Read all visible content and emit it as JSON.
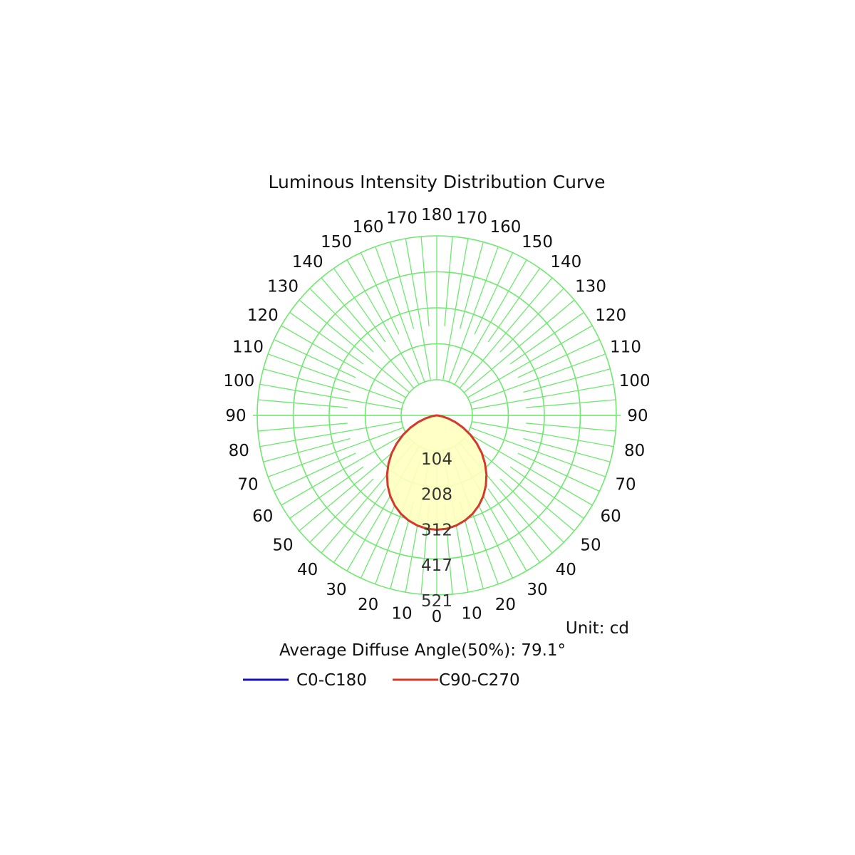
{
  "chart_data": {
    "type": "polar",
    "title": "Luminous Intensity Distribution Curve",
    "unit_label": "Unit: cd",
    "average_angle_label": "Average Diffuse Angle(50%): 79.1°",
    "radial_ticks": [
      "104",
      "208",
      "312",
      "417",
      "521"
    ],
    "radial_max": 521,
    "angle_labels_right": [
      "0",
      "10",
      "20",
      "30",
      "40",
      "50",
      "60",
      "70",
      "80",
      "90",
      "100",
      "110",
      "120",
      "130",
      "140",
      "150",
      "160",
      "170",
      "180"
    ],
    "angle_labels_left": [
      "10",
      "20",
      "30",
      "40",
      "50",
      "60",
      "70",
      "80",
      "90",
      "100",
      "110",
      "120",
      "130",
      "140",
      "150",
      "160",
      "170"
    ],
    "angles": [
      0,
      5,
      10,
      15,
      20,
      25,
      30,
      35,
      40,
      45,
      50,
      55,
      60,
      65,
      70,
      75,
      80,
      85,
      90
    ],
    "series": [
      {
        "name": "C0-C180",
        "color": "#1a10b0",
        "values": [
          414,
          412,
          405,
          394,
          379,
          360,
          337,
          310,
          280,
          247,
          213,
          177,
          141,
          106,
          72,
          42,
          17,
          4,
          0
        ]
      },
      {
        "name": "C90-C270",
        "color": "#d43a2a",
        "values": [
          414,
          412,
          405,
          394,
          379,
          360,
          337,
          310,
          280,
          247,
          213,
          177,
          141,
          106,
          72,
          42,
          17,
          4,
          0
        ]
      }
    ],
    "grid_color": "#6fe86f",
    "fill_color": "#ffffc0"
  }
}
